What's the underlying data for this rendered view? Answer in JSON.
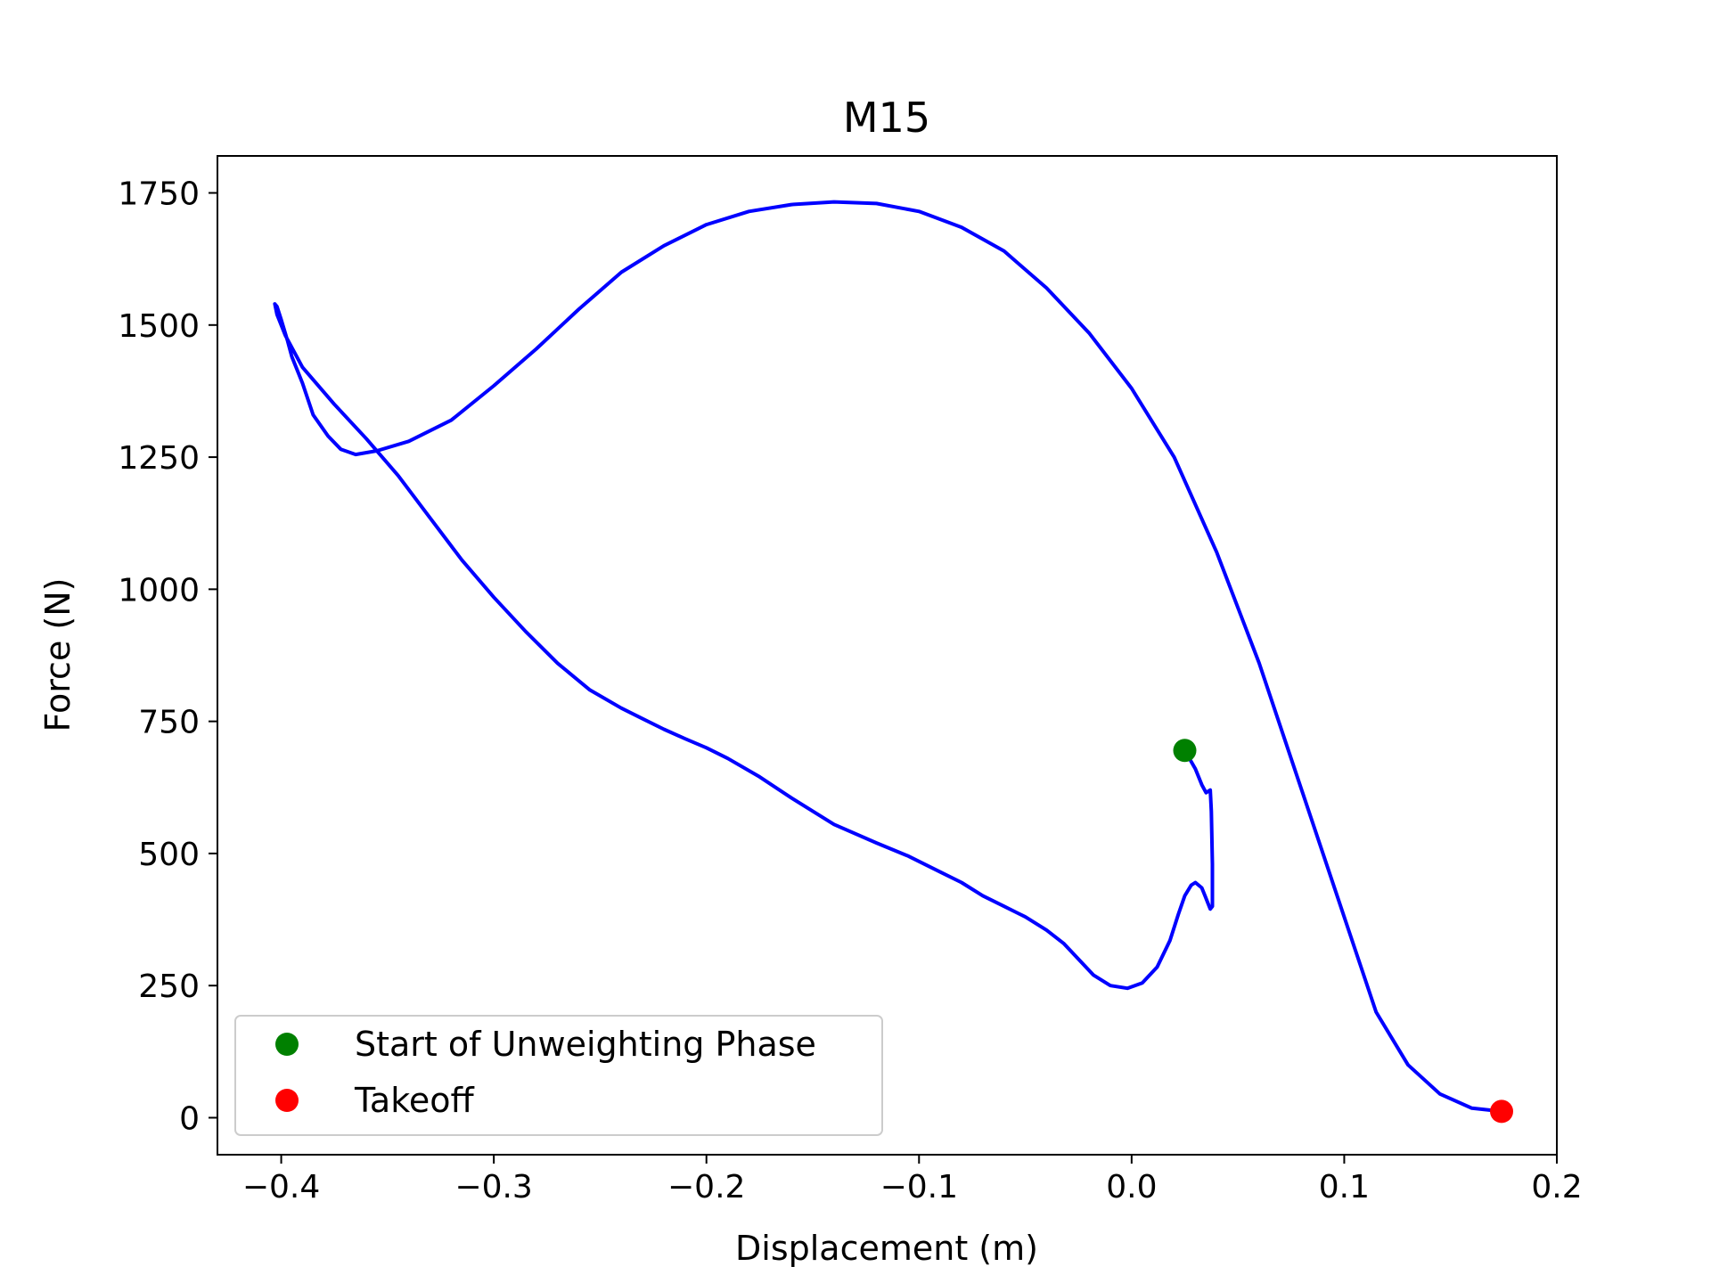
{
  "chart_data": {
    "type": "line",
    "title": "M15",
    "xlabel": "Displacement (m)",
    "ylabel": "Force (N)",
    "xlim": [
      -0.43,
      0.2
    ],
    "ylim": [
      -70,
      1820
    ],
    "xticks": [
      -0.4,
      -0.3,
      -0.2,
      -0.1,
      0.0,
      0.1,
      0.2
    ],
    "xtick_labels": [
      "−0.4",
      "−0.3",
      "−0.2",
      "−0.1",
      "0.0",
      "0.1",
      "0.2"
    ],
    "yticks": [
      0,
      250,
      500,
      750,
      1000,
      1250,
      1500,
      1750
    ],
    "ytick_labels": [
      "0",
      "250",
      "500",
      "750",
      "1000",
      "1250",
      "1500",
      "1750"
    ],
    "grid": false,
    "legend_position": "lower-left",
    "series": [
      {
        "color": "#0000ff",
        "x": [
          0.025,
          0.03,
          0.033,
          0.035,
          0.037,
          0.0375,
          0.038,
          0.038,
          0.038,
          0.037,
          0.036,
          0.0345,
          0.033,
          0.03,
          0.028,
          0.025,
          0.022,
          0.018,
          0.012,
          0.005,
          -0.002,
          -0.01,
          -0.018,
          -0.025,
          -0.032,
          -0.04,
          -0.05,
          -0.06,
          -0.07,
          -0.08,
          -0.09,
          -0.105,
          -0.12,
          -0.14,
          -0.16,
          -0.175,
          -0.19,
          -0.2,
          -0.21,
          -0.22,
          -0.23,
          -0.24,
          -0.255,
          -0.27,
          -0.285,
          -0.3,
          -0.315,
          -0.33,
          -0.345,
          -0.36,
          -0.375,
          -0.39,
          -0.398,
          -0.402,
          -0.403,
          -0.402,
          -0.4,
          -0.397,
          -0.395,
          -0.39,
          -0.385,
          -0.378,
          -0.372,
          -0.365,
          -0.355,
          -0.34,
          -0.32,
          -0.3,
          -0.28,
          -0.26,
          -0.24,
          -0.22,
          -0.2,
          -0.18,
          -0.16,
          -0.14,
          -0.12,
          -0.1,
          -0.08,
          -0.06,
          -0.04,
          -0.02,
          0.0,
          0.02,
          0.04,
          0.06,
          0.08,
          0.1,
          0.115,
          0.13,
          0.145,
          0.16,
          0.174
        ],
        "y": [
          695,
          660,
          630,
          615,
          620,
          580,
          480,
          420,
          400,
          395,
          405,
          420,
          435,
          445,
          440,
          420,
          385,
          335,
          285,
          255,
          245,
          250,
          270,
          300,
          330,
          355,
          380,
          400,
          420,
          445,
          465,
          495,
          520,
          555,
          605,
          645,
          680,
          700,
          717,
          735,
          755,
          775,
          810,
          860,
          920,
          985,
          1055,
          1135,
          1215,
          1285,
          1350,
          1420,
          1480,
          1520,
          1540,
          1535,
          1510,
          1470,
          1440,
          1390,
          1330,
          1290,
          1265,
          1255,
          1262,
          1280,
          1320,
          1385,
          1455,
          1530,
          1600,
          1650,
          1690,
          1715,
          1728,
          1733,
          1730,
          1715,
          1685,
          1640,
          1570,
          1485,
          1380,
          1250,
          1070,
          860,
          620,
          380,
          200,
          100,
          45,
          18,
          12
        ]
      }
    ],
    "markers": [
      {
        "name": "Start of Unweighting Phase",
        "x": 0.025,
        "y": 695,
        "color": "#008000"
      },
      {
        "name": "Takeoff",
        "x": 0.174,
        "y": 12,
        "color": "#ff0000"
      }
    ]
  }
}
